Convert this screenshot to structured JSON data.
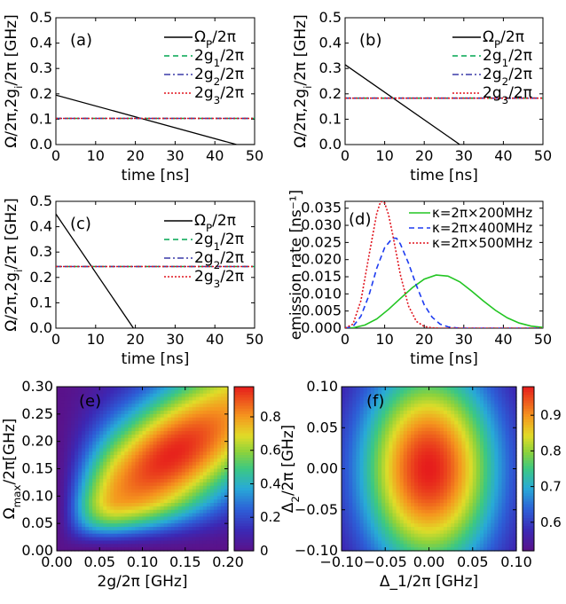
{
  "colors": {
    "omega": "#000000",
    "g1": "#00a651",
    "g2": "#3a3aa8",
    "g3": "#e0141e",
    "k200": "#22c522",
    "k400": "#1e3cf0",
    "k500": "#e0141e"
  },
  "chart_data": [
    {
      "type": "line",
      "panel_label": "(a)",
      "xlabel": "time [ns]",
      "ylabel": "Ω/2π,2g_i/2π [GHz]",
      "xlim": [
        0,
        50
      ],
      "ylim": [
        0,
        0.5
      ],
      "xticks": [
        0,
        10,
        20,
        30,
        40,
        50
      ],
      "yticks": [
        0.0,
        0.1,
        0.2,
        0.3,
        0.4,
        0.5
      ],
      "ytick_labels": [
        "0.0",
        "0.1",
        "0.2",
        "0.3",
        "0.4",
        "0.5"
      ],
      "legend": [
        "Ω_P/2π",
        "2g_1/2π",
        "2g_2/2π",
        "2g_3/2π"
      ],
      "series": [
        {
          "name": "Ω_P/2π",
          "style": "solid",
          "x": [
            0,
            45.5,
            50
          ],
          "y": [
            0.195,
            0,
            0
          ]
        },
        {
          "name": "2g_1/2π",
          "style": "dashed",
          "x": [
            0,
            50
          ],
          "y": [
            0.103,
            0.103
          ]
        },
        {
          "name": "2g_2/2π",
          "style": "dashdot",
          "x": [
            0,
            50
          ],
          "y": [
            0.103,
            0.103
          ]
        },
        {
          "name": "2g_3/2π",
          "style": "dotted",
          "x": [
            0,
            50
          ],
          "y": [
            0.103,
            0.103
          ]
        }
      ]
    },
    {
      "type": "line",
      "panel_label": "(b)",
      "xlabel": "time [ns]",
      "ylabel": "Ω/2π,2g_i/2π [GHz]",
      "xlim": [
        0,
        50
      ],
      "ylim": [
        0,
        0.5
      ],
      "xticks": [
        0,
        10,
        20,
        30,
        40,
        50
      ],
      "yticks": [
        0.0,
        0.1,
        0.2,
        0.3,
        0.4,
        0.5
      ],
      "ytick_labels": [
        "0.0",
        "0.1",
        "0.2",
        "0.3",
        "0.4",
        "0.5"
      ],
      "legend": [
        "Ω_P/2π",
        "2g_1/2π",
        "2g_2/2π",
        "2g_3/2π"
      ],
      "series": [
        {
          "name": "Ω_P/2π",
          "style": "solid",
          "x": [
            0,
            29,
            50
          ],
          "y": [
            0.315,
            0,
            0
          ]
        },
        {
          "name": "2g_1/2π",
          "style": "dashed",
          "x": [
            0,
            50
          ],
          "y": [
            0.183,
            0.183
          ]
        },
        {
          "name": "2g_2/2π",
          "style": "dashdot",
          "x": [
            0,
            50
          ],
          "y": [
            0.183,
            0.183
          ]
        },
        {
          "name": "2g_3/2π",
          "style": "dotted",
          "x": [
            0,
            50
          ],
          "y": [
            0.183,
            0.183
          ]
        }
      ]
    },
    {
      "type": "line",
      "panel_label": "(c)",
      "xlabel": "time [ns]",
      "ylabel": "Ω/2π,2g_i/2π [GHz]",
      "xlim": [
        0,
        50
      ],
      "ylim": [
        0,
        0.5
      ],
      "xticks": [
        0,
        10,
        20,
        30,
        40,
        50
      ],
      "yticks": [
        0.0,
        0.1,
        0.2,
        0.3,
        0.4,
        0.5
      ],
      "ytick_labels": [
        "0.0",
        "0.1",
        "0.2",
        "0.3",
        "0.4",
        "0.5"
      ],
      "legend": [
        "Ω_P/2π",
        "2g_1/2π",
        "2g_2/2π",
        "2g_3/2π"
      ],
      "series": [
        {
          "name": "Ω_P/2π",
          "style": "solid",
          "x": [
            0,
            19.5,
            50
          ],
          "y": [
            0.45,
            0,
            0
          ]
        },
        {
          "name": "2g_1/2π",
          "style": "dashed",
          "x": [
            0,
            50
          ],
          "y": [
            0.243,
            0.243
          ]
        },
        {
          "name": "2g_2/2π",
          "style": "dashdot",
          "x": [
            0,
            50
          ],
          "y": [
            0.243,
            0.243
          ]
        },
        {
          "name": "2g_3/2π",
          "style": "dotted",
          "x": [
            0,
            50
          ],
          "y": [
            0.243,
            0.243
          ]
        }
      ]
    },
    {
      "type": "line",
      "panel_label": "(d)",
      "xlabel": "time [ns]",
      "ylabel": "emission rate [ns⁻¹]",
      "xlim": [
        0,
        50
      ],
      "ylim": [
        0,
        0.037
      ],
      "xticks": [
        0,
        10,
        20,
        30,
        40,
        50
      ],
      "yticks": [
        0,
        0.005,
        0.01,
        0.015,
        0.02,
        0.025,
        0.03,
        0.035
      ],
      "ytick_labels": [
        "0.000",
        "0.005",
        "0.010",
        "0.015",
        "0.020",
        "0.025",
        "0.030",
        "0.035"
      ],
      "legend": [
        "κ=2π×200MHz",
        "κ=2π×400MHz",
        "κ=2π×500MHz"
      ],
      "series": [
        {
          "name": "κ=2π×200MHz",
          "style": "solid",
          "x": [
            0,
            2,
            5,
            8,
            11,
            14,
            17,
            20,
            23,
            26,
            29,
            32,
            35,
            38,
            41,
            44,
            47,
            50
          ],
          "y": [
            0,
            0.0001,
            0.0009,
            0.0027,
            0.0055,
            0.0087,
            0.0118,
            0.0143,
            0.0155,
            0.0152,
            0.0135,
            0.0108,
            0.0079,
            0.0052,
            0.003,
            0.0015,
            0.0006,
            0.0002
          ]
        },
        {
          "name": "κ=2π×400MHz",
          "style": "dashed",
          "x": [
            0,
            2,
            4,
            6,
            8,
            10,
            12,
            13,
            14,
            16,
            18,
            20,
            22,
            24,
            26,
            28,
            30,
            50
          ],
          "y": [
            0,
            0.0005,
            0.0035,
            0.0095,
            0.0175,
            0.0235,
            0.0263,
            0.0262,
            0.0245,
            0.019,
            0.0125,
            0.0068,
            0.0032,
            0.0012,
            0.0004,
            0.0001,
            0,
            0
          ]
        },
        {
          "name": "κ=2π×500MHz",
          "style": "dotted",
          "x": [
            0,
            2,
            4,
            6,
            8,
            9,
            10,
            11,
            12,
            14,
            16,
            18,
            20,
            22,
            24,
            26,
            50
          ],
          "y": [
            0,
            0.0012,
            0.008,
            0.021,
            0.0335,
            0.037,
            0.0365,
            0.033,
            0.0275,
            0.0155,
            0.0065,
            0.002,
            0.0005,
            0.0001,
            0,
            0,
            0
          ]
        }
      ]
    },
    {
      "type": "heatmap",
      "panel_label": "(e)",
      "xlabel": "2g/2π [GHz]",
      "ylabel": "Ω_max/2π[GHz]",
      "xlim": [
        0,
        0.2
      ],
      "ylim": [
        0,
        0.3
      ],
      "xticks": [
        0,
        0.05,
        0.1,
        0.15,
        0.2
      ],
      "xtick_labels": [
        "0.00",
        "0.05",
        "0.10",
        "0.15",
        "0.20"
      ],
      "yticks": [
        0,
        0.05,
        0.1,
        0.15,
        0.2,
        0.25,
        0.3
      ],
      "ytick_labels": [
        "0.00",
        "0.05",
        "0.10",
        "0.15",
        "0.20",
        "0.25",
        "0.30"
      ],
      "colorbar": {
        "range": [
          0,
          0.98
        ],
        "ticks": [
          0,
          0.2,
          0.4,
          0.6,
          0.8
        ],
        "tick_labels": [
          "0",
          "0.2",
          "0.4",
          "0.6",
          "0.8"
        ]
      }
    },
    {
      "type": "heatmap",
      "panel_label": "(f)",
      "xlabel": "Δ_1/2π [GHz]",
      "ylabel": "Δ_2/2π [GHz]",
      "xlim": [
        -0.1,
        0.1
      ],
      "ylim": [
        -0.1,
        0.1
      ],
      "xticks": [
        -0.1,
        -0.05,
        0,
        0.05,
        0.1
      ],
      "xtick_labels": [
        "−0.10",
        "−0.05",
        "0.00",
        "0.05",
        "0.10"
      ],
      "yticks": [
        -0.1,
        -0.05,
        0,
        0.05,
        0.1
      ],
      "ytick_labels": [
        "−0.10",
        "−0.05",
        "0.00",
        "0.05",
        "0.10"
      ],
      "colorbar": {
        "range": [
          0.52,
          0.98
        ],
        "ticks": [
          0.6,
          0.7,
          0.8,
          0.9
        ],
        "tick_labels": [
          "0.6",
          "0.7",
          "0.8",
          "0.9"
        ]
      }
    }
  ]
}
